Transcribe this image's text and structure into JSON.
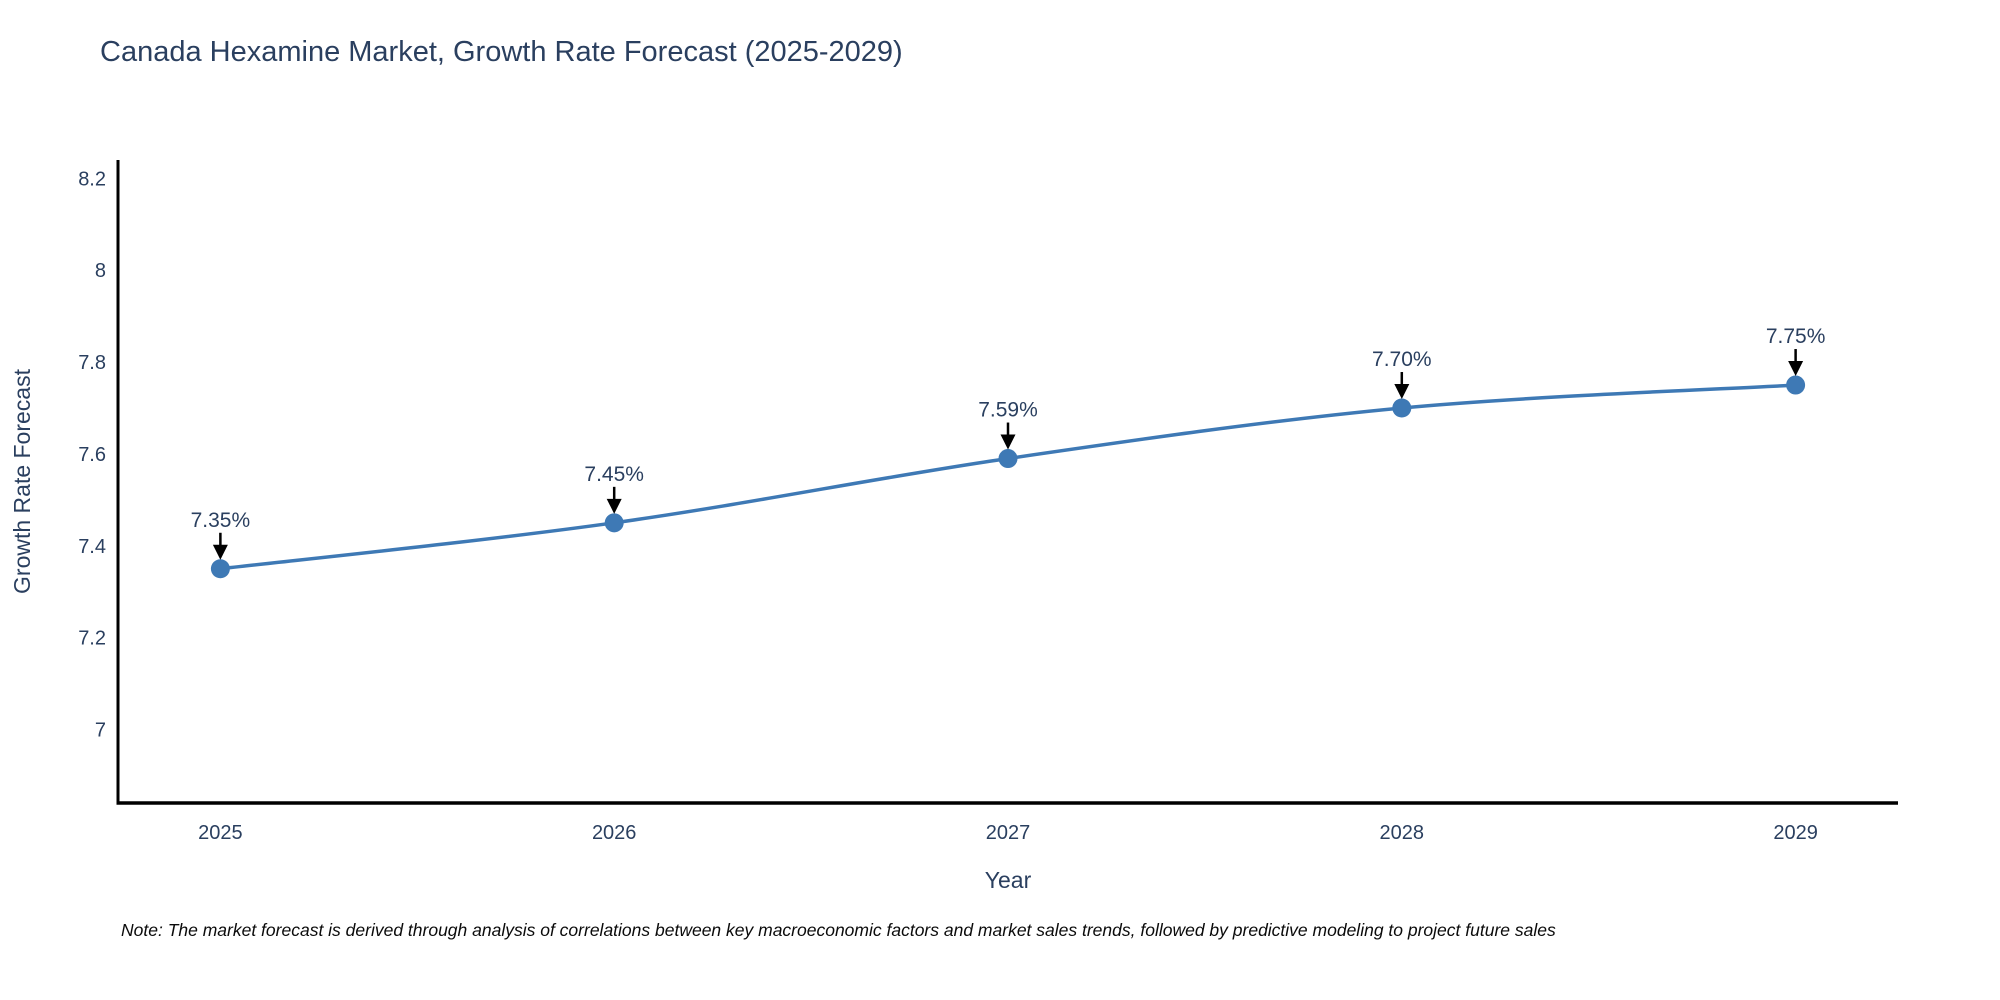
{
  "header": {
    "title": "Canada Hexamine Market, Growth Rate Forecast (2025-2029)"
  },
  "chart_data": {
    "type": "line",
    "title": "Canada Hexamine Market, Growth Rate Forecast (2025-2029)",
    "x": [
      2025,
      2026,
      2027,
      2028,
      2029
    ],
    "series": [
      {
        "name": "Growth Rate Forecast",
        "values": [
          7.35,
          7.45,
          7.59,
          7.7,
          7.75
        ],
        "point_labels": [
          "7.35%",
          "7.45%",
          "7.59%",
          "7.70%",
          "7.75%"
        ]
      }
    ],
    "xlabel": "Year",
    "ylabel": "Growth Rate Forecast",
    "xtick_labels": [
      "2025",
      "2026",
      "2027",
      "2028",
      "2029"
    ],
    "ytick_values": [
      7,
      7.2,
      7.4,
      7.6,
      7.8,
      8,
      8.2
    ],
    "ytick_labels": [
      "7",
      "7.2",
      "7.4",
      "7.6",
      "7.8",
      "8",
      "8.2"
    ],
    "xlim": [
      2024.74,
      2029.26
    ],
    "ylim": [
      6.84,
      8.24
    ],
    "grid": false,
    "legend_position": "none",
    "line_color": "#3E79B5",
    "marker_color": "#3E79B5",
    "axis_line_color": "#000000",
    "annotation_arrow_color": "#000000",
    "text_color": "#2a3f5f"
  },
  "footer": {
    "note": "Note: The market forecast is derived through analysis of correlations between key macroeconomic factors and market sales trends, followed by predictive modeling to project future sales"
  }
}
